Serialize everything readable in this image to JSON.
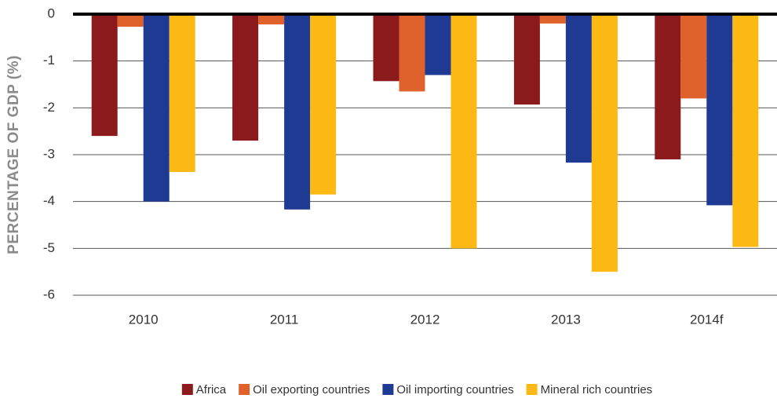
{
  "chart_data": {
    "type": "bar",
    "y_axis_label": "PERCENTAGE OF GDP (%)",
    "categories": [
      "2010",
      "2011",
      "2012",
      "2013",
      "2014f"
    ],
    "series": [
      {
        "name": "Africa",
        "color": "#8b1a1d",
        "values": [
          -2.6,
          -2.7,
          -1.43,
          -1.93,
          -3.1
        ]
      },
      {
        "name": "Oil exporting countries",
        "color": "#df612b",
        "values": [
          -0.27,
          -0.22,
          -1.65,
          -0.2,
          -1.8
        ]
      },
      {
        "name": "Oil importing countries",
        "color": "#1f3a93",
        "values": [
          -4.0,
          -4.17,
          -1.3,
          -3.17,
          -4.08
        ]
      },
      {
        "name": "Mineral rich countries",
        "color": "#fdb913",
        "values": [
          -3.37,
          -3.85,
          -5.0,
          -5.5,
          -4.97
        ]
      }
    ],
    "ylim": [
      -6,
      0
    ],
    "yticks": [
      0,
      -1,
      -2,
      -3,
      -4,
      -5,
      -6
    ],
    "grid": true,
    "legend": "bottom"
  }
}
